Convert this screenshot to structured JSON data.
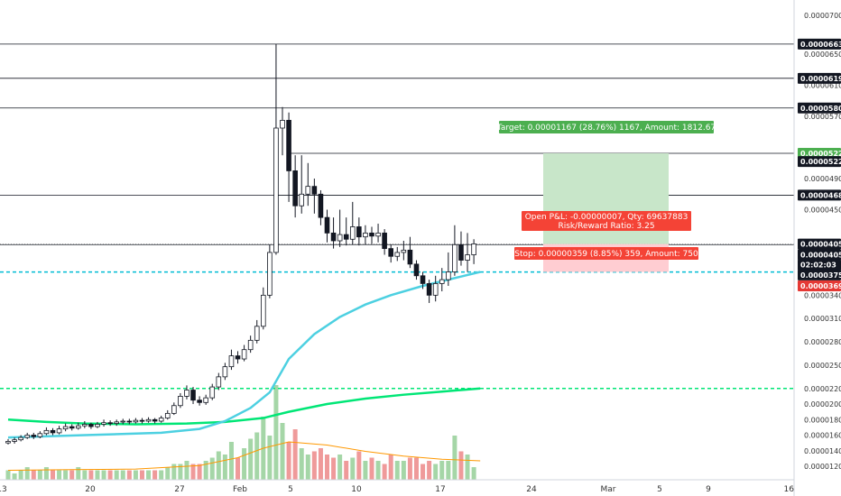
{
  "chart_data": {
    "type": "candlestick",
    "price_axis": {
      "ticks": [
        "0.00007000",
        "0.00006630",
        "0.00006500",
        "0.00006190",
        "0.00006100",
        "0.00005808",
        "0.00005700",
        "0.00005225",
        "0.00005225",
        "0.00004900",
        "0.00004687",
        "0.00004500",
        "0.00004058",
        "0.00004051",
        "02:02:03",
        "0.00003757",
        "0.00003699",
        "0.00003400",
        "0.00003100",
        "0.00002800",
        "0.00002500",
        "0.00002200",
        "0.00002000",
        "0.00001800",
        "0.00001600",
        "0.00001400",
        "0.00001200"
      ],
      "tags": [
        {
          "label": "0.00006630",
          "price": 6.63e-05,
          "color": "#131722"
        },
        {
          "label": "0.00006190",
          "price": 6.19e-05,
          "color": "#131722"
        },
        {
          "label": "0.00005808",
          "price": 5.808e-05,
          "color": "#131722"
        },
        {
          "label": "0.00005225",
          "price": 5.225e-05,
          "color": "#4caf50"
        },
        {
          "label": "0.00005225",
          "price": 5.12e-05,
          "color": "#131722"
        },
        {
          "label": "0.00004687",
          "price": 4.687e-05,
          "color": "#131722"
        },
        {
          "label": "0.00004058",
          "price": 4.058e-05,
          "color": "#131722"
        },
        {
          "label": "0.00004051",
          "price": 3.92e-05,
          "color": "#131722"
        },
        {
          "label": "02:02:03",
          "price": 3.79e-05,
          "color": "#131722"
        },
        {
          "label": "0.00003757",
          "price": 3.66e-05,
          "color": "#131722"
        },
        {
          "label": "0.00003699",
          "price": 3.52e-05,
          "color": "#e53935"
        }
      ]
    },
    "time_axis": {
      "labels": [
        "13",
        "20",
        "27",
        "Feb",
        "5",
        "10",
        "17",
        "24",
        "Mar",
        "5",
        "9",
        "16"
      ]
    },
    "horizontal_levels": [
      6.63e-05,
      6.19e-05,
      5.808e-05,
      4.687e-05,
      4.051e-05
    ],
    "position_tool": {
      "target_label": "Target: 0.00001167 (28.76%) 1167, Amount: 1812.67",
      "pnl_label": "Open P&L: -0.00000007, Qty: 69637883",
      "rr_label": "Risk/Reward Ratio: 3.25",
      "stop_label": "Stop: 0.00000359 (8.85%) 359, Amount: 750",
      "entry": 4.058e-05,
      "target": 5.225e-05,
      "stop": 3.699e-05
    },
    "dashed_levels": [
      {
        "price": 3.699e-05,
        "color": "#00bcd4"
      },
      {
        "price": 2.2e-05,
        "color": "#00e676"
      }
    ],
    "candles": [
      [
        1.5e-05,
        1.52e-05,
        1.48e-05,
        1.55e-05
      ],
      [
        1.52e-05,
        1.54e-05,
        1.49e-05,
        1.57e-05
      ],
      [
        1.54e-05,
        1.57e-05,
        1.52e-05,
        1.6e-05
      ],
      [
        1.57e-05,
        1.6e-05,
        1.55e-05,
        1.63e-05
      ],
      [
        1.6e-05,
        1.58e-05,
        1.55e-05,
        1.63e-05
      ],
      [
        1.58e-05,
        1.62e-05,
        1.56e-05,
        1.65e-05
      ],
      [
        1.62e-05,
        1.66e-05,
        1.6e-05,
        1.7e-05
      ],
      [
        1.66e-05,
        1.63e-05,
        1.6e-05,
        1.69e-05
      ],
      [
        1.63e-05,
        1.68e-05,
        1.61e-05,
        1.72e-05
      ],
      [
        1.68e-05,
        1.71e-05,
        1.65e-05,
        1.75e-05
      ],
      [
        1.71e-05,
        1.69e-05,
        1.66e-05,
        1.74e-05
      ],
      [
        1.69e-05,
        1.72e-05,
        1.67e-05,
        1.76e-05
      ],
      [
        1.72e-05,
        1.74e-05,
        1.69e-05,
        1.78e-05
      ],
      [
        1.74e-05,
        1.71e-05,
        1.68e-05,
        1.76e-05
      ],
      [
        1.71e-05,
        1.74e-05,
        1.69e-05,
        1.77e-05
      ],
      [
        1.74e-05,
        1.76e-05,
        1.71e-05,
        1.8e-05
      ],
      [
        1.76e-05,
        1.75e-05,
        1.72e-05,
        1.79e-05
      ],
      [
        1.75e-05,
        1.77e-05,
        1.72e-05,
        1.8e-05
      ],
      [
        1.77e-05,
        1.78e-05,
        1.74e-05,
        1.81e-05
      ],
      [
        1.78e-05,
        1.77e-05,
        1.74e-05,
        1.81e-05
      ],
      [
        1.77e-05,
        1.79e-05,
        1.75e-05,
        1.82e-05
      ],
      [
        1.79e-05,
        1.78e-05,
        1.75e-05,
        1.82e-05
      ],
      [
        1.78e-05,
        1.8e-05,
        1.76e-05,
        1.83e-05
      ],
      [
        1.8e-05,
        1.78e-05,
        1.75e-05,
        1.82e-05
      ],
      [
        1.78e-05,
        1.82e-05,
        1.76e-05,
        1.85e-05
      ],
      [
        1.82e-05,
        1.88e-05,
        1.8e-05,
        1.92e-05
      ],
      [
        1.88e-05,
        1.98e-05,
        1.86e-05,
        2.02e-05
      ],
      [
        1.98e-05,
        2.1e-05,
        1.95e-05,
        2.14e-05
      ],
      [
        2.1e-05,
        2.18e-05,
        2.06e-05,
        2.24e-05
      ],
      [
        2.18e-05,
        2.05e-05,
        2e-05,
        2.22e-05
      ],
      [
        2.05e-05,
        2.02e-05,
        1.98e-05,
        2.1e-05
      ],
      [
        2.02e-05,
        2.08e-05,
        1.99e-05,
        2.12e-05
      ],
      [
        2.08e-05,
        2.22e-05,
        2.05e-05,
        2.26e-05
      ],
      [
        2.22e-05,
        2.35e-05,
        2.18e-05,
        2.4e-05
      ],
      [
        2.35e-05,
        2.48e-05,
        2.31e-05,
        2.53e-05
      ],
      [
        2.48e-05,
        2.62e-05,
        2.44e-05,
        2.7e-05
      ],
      [
        2.62e-05,
        2.58e-05,
        2.52e-05,
        2.68e-05
      ],
      [
        2.58e-05,
        2.7e-05,
        2.55e-05,
        2.76e-05
      ],
      [
        2.7e-05,
        2.82e-05,
        2.66e-05,
        2.88e-05
      ],
      [
        2.82e-05,
        3e-05,
        2.78e-05,
        3.08e-05
      ],
      [
        3e-05,
        3.4e-05,
        2.96e-05,
        3.5e-05
      ],
      [
        3.4e-05,
        3.95e-05,
        3.36e-05,
        4.05e-05
      ],
      [
        3.95e-05,
        5.55e-05,
        3.92e-05,
        6.63e-05
      ],
      [
        5.55e-05,
        5.65e-05,
        5.2e-05,
        5.82e-05
      ],
      [
        5.65e-05,
        5e-05,
        4.6e-05,
        5.75e-05
      ],
      [
        5e-05,
        4.55e-05,
        4.4e-05,
        5.2e-05
      ],
      [
        4.55e-05,
        4.7e-05,
        4.45e-05,
        5.2e-05
      ],
      [
        4.7e-05,
        4.8e-05,
        4.55e-05,
        5.1e-05
      ],
      [
        4.8e-05,
        4.7e-05,
        4.45e-05,
        4.9e-05
      ],
      [
        4.7e-05,
        4.4e-05,
        4.3e-05,
        4.75e-05
      ],
      [
        4.4e-05,
        4.2e-05,
        4.08e-05,
        4.5e-05
      ],
      [
        4.2e-05,
        4.1e-05,
        4e-05,
        4.4e-05
      ],
      [
        4.1e-05,
        4.18e-05,
        4.02e-05,
        4.5e-05
      ],
      [
        4.18e-05,
        4.12e-05,
        4.04e-05,
        4.4e-05
      ],
      [
        4.12e-05,
        4.28e-05,
        4.05e-05,
        4.6e-05
      ],
      [
        4.28e-05,
        4.15e-05,
        4.04e-05,
        4.4e-05
      ],
      [
        4.15e-05,
        4.2e-05,
        4.05e-05,
        4.3e-05
      ],
      [
        4.2e-05,
        4.16e-05,
        4.06e-05,
        4.28e-05
      ],
      [
        4.16e-05,
        4.2e-05,
        4.08e-05,
        4.32e-05
      ],
      [
        4.2e-05,
        4e-05,
        3.92e-05,
        4.25e-05
      ],
      [
        4e-05,
        3.9e-05,
        3.82e-05,
        4.05e-05
      ],
      [
        3.9e-05,
        3.95e-05,
        3.84e-05,
        4.02e-05
      ],
      [
        3.95e-05,
        3.98e-05,
        3.85e-05,
        4.1e-05
      ],
      [
        3.98e-05,
        3.8e-05,
        3.75e-05,
        4.15e-05
      ],
      [
        3.8e-05,
        3.65e-05,
        3.6e-05,
        3.85e-05
      ],
      [
        3.65e-05,
        3.55e-05,
        3.48e-05,
        3.7e-05
      ],
      [
        3.55e-05,
        3.4e-05,
        3.3e-05,
        3.6e-05
      ],
      [
        3.4e-05,
        3.55e-05,
        3.32e-05,
        3.65e-05
      ],
      [
        3.55e-05,
        3.6e-05,
        3.45e-05,
        3.75e-05
      ],
      [
        3.6e-05,
        3.7e-05,
        3.52e-05,
        3.95e-05
      ],
      [
        3.7e-05,
        4.05e-05,
        3.65e-05,
        4.3e-05
      ],
      [
        4.05e-05,
        3.85e-05,
        3.78e-05,
        4.22e-05
      ],
      [
        3.85e-05,
        3.92e-05,
        3.7e-05,
        4.2e-05
      ],
      [
        3.92e-05,
        4.06e-05,
        3.8e-05,
        4.12e-05
      ]
    ],
    "ma_cyan": [
      [
        0,
        1.57e-05
      ],
      [
        12,
        1.6e-05
      ],
      [
        24,
        1.63e-05
      ],
      [
        30,
        1.68e-05
      ],
      [
        34,
        1.78e-05
      ],
      [
        38,
        1.95e-05
      ],
      [
        41,
        2.15e-05
      ],
      [
        44,
        2.58e-05
      ],
      [
        48,
        2.9e-05
      ],
      [
        52,
        3.12e-05
      ],
      [
        56,
        3.28e-05
      ],
      [
        60,
        3.4e-05
      ],
      [
        65,
        3.52e-05
      ],
      [
        70,
        3.62e-05
      ],
      [
        74,
        3.7e-05
      ]
    ],
    "ma_green": [
      [
        0,
        1.8e-05
      ],
      [
        6,
        1.77e-05
      ],
      [
        12,
        1.75e-05
      ],
      [
        20,
        1.74e-05
      ],
      [
        28,
        1.75e-05
      ],
      [
        34,
        1.77e-05
      ],
      [
        40,
        1.82e-05
      ],
      [
        44,
        1.9e-05
      ],
      [
        50,
        2e-05
      ],
      [
        56,
        2.07e-05
      ],
      [
        62,
        2.12e-05
      ],
      [
        68,
        2.16e-05
      ],
      [
        74,
        2.2e-05
      ]
    ],
    "volumes": [
      3,
      2,
      3,
      4,
      3,
      3,
      4,
      3,
      3,
      3,
      3,
      4,
      3,
      3,
      3,
      3,
      3,
      3,
      3,
      3,
      3,
      3,
      3,
      3,
      3,
      4,
      5,
      5,
      6,
      5,
      5,
      6,
      7,
      9,
      8,
      12,
      7,
      10,
      13,
      15,
      20,
      14,
      30,
      18,
      12,
      16,
      10,
      8,
      9,
      10,
      8,
      7,
      8,
      6,
      7,
      9,
      6,
      7,
      6,
      5,
      8,
      6,
      6,
      7,
      7,
      5,
      6,
      5,
      6,
      6,
      14,
      9,
      8,
      4
    ],
    "vol_ma": [
      [
        0,
        3
      ],
      [
        10,
        3.2
      ],
      [
        20,
        3.4
      ],
      [
        30,
        4.5
      ],
      [
        36,
        7
      ],
      [
        40,
        10
      ],
      [
        44,
        12
      ],
      [
        50,
        11
      ],
      [
        56,
        9
      ],
      [
        62,
        7.5
      ],
      [
        68,
        6.5
      ],
      [
        74,
        6
      ]
    ]
  }
}
